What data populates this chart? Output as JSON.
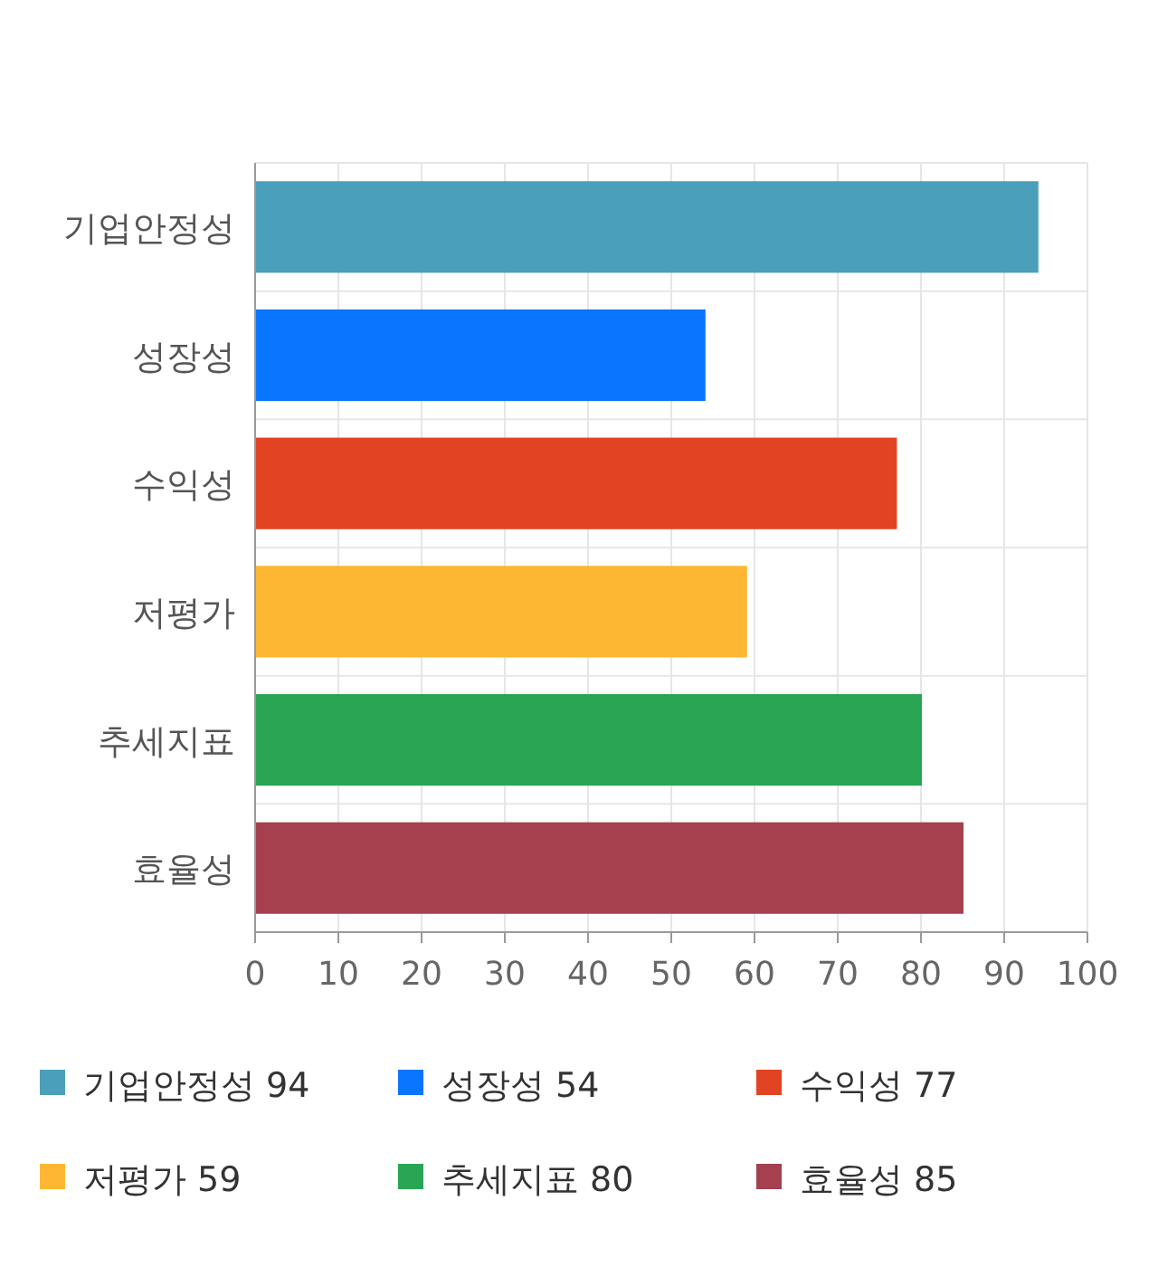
{
  "chart_data": {
    "type": "bar",
    "orientation": "horizontal",
    "stacked": true,
    "categories": [
      "기업안정성",
      "성장성",
      "수익성",
      "저평가",
      "추세지표",
      "효율성"
    ],
    "series": [
      {
        "name": "기업안정성 94",
        "color": "#4aa0ba",
        "values": [
          94,
          null,
          null,
          null,
          null,
          null
        ]
      },
      {
        "name": "성장성 54",
        "color": "#0a75ff",
        "values": [
          null,
          54,
          null,
          null,
          null,
          null
        ]
      },
      {
        "name": "수익성 77",
        "color": "#e24423",
        "values": [
          null,
          null,
          77,
          null,
          null,
          null
        ]
      },
      {
        "name": "저평가 59",
        "color": "#feb732",
        "values": [
          null,
          null,
          null,
          59,
          null,
          null
        ]
      },
      {
        "name": "추세지표 80",
        "color": "#29a553",
        "values": [
          null,
          null,
          null,
          null,
          80,
          null
        ]
      },
      {
        "name": "효율성 85",
        "color": "#a5404e",
        "values": [
          null,
          null,
          null,
          null,
          null,
          85
        ]
      }
    ],
    "xlim": [
      0,
      100
    ],
    "xticks": [
      0,
      10,
      20,
      30,
      40,
      50,
      60,
      70,
      80,
      90,
      100
    ],
    "grid": true,
    "legend": "bottom"
  }
}
